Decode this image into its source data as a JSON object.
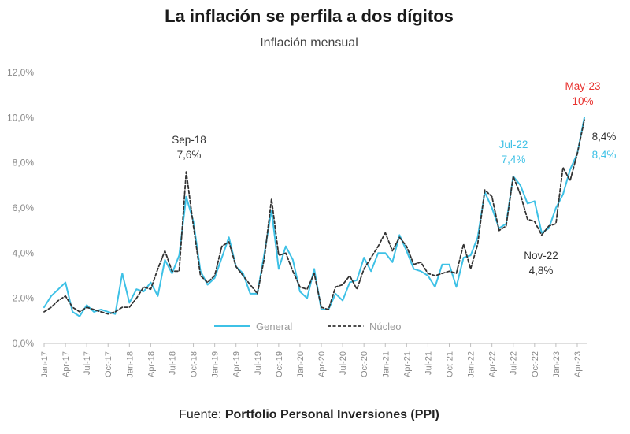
{
  "header": {
    "title": "La inflación se perfila a dos dígitos",
    "subtitle": "Inflación mensual"
  },
  "footer": {
    "source_prefix": "Fuente: ",
    "source_name": "Portfolio Personal Inversiones (PPI)"
  },
  "colors": {
    "general": "#3ec1e6",
    "nucleo": "#333333",
    "highlight": "#e8322f",
    "axis": "#bfbfbf"
  },
  "chart_data": {
    "type": "line",
    "title": "La inflación se perfila a dos dígitos",
    "subtitle": "Inflación mensual",
    "ylim": [
      0,
      12
    ],
    "yticks": [
      0,
      2,
      4,
      6,
      8,
      10,
      12
    ],
    "ytick_labels": [
      "0,0%",
      "2,0%",
      "4,0%",
      "6,0%",
      "8,0%",
      "10,0%",
      "12,0%"
    ],
    "x_tick_labels": [
      "Jan-17",
      "Apr-17",
      "Jul-17",
      "Oct-17",
      "Jan-18",
      "Apr-18",
      "Jul-18",
      "Oct-18",
      "Jan-19",
      "Apr-19",
      "Jul-19",
      "Oct-19",
      "Jan-20",
      "Apr-20",
      "Jul-20",
      "Oct-20",
      "Jan-21",
      "Apr-21",
      "Jul-21",
      "Oct-21",
      "Jan-22",
      "Apr-22",
      "Jul-22",
      "Oct-22",
      "Jan-23",
      "Apr-23"
    ],
    "x_start": "Jan-17",
    "x_end": "May-23",
    "grid": false,
    "legend_position": "bottom-center",
    "series": [
      {
        "name": "General",
        "style": "solid",
        "values": [
          1.6,
          2.1,
          2.4,
          2.7,
          1.4,
          1.2,
          1.7,
          1.4,
          1.5,
          1.4,
          1.3,
          3.1,
          1.8,
          2.4,
          2.3,
          2.7,
          2.1,
          3.7,
          3.1,
          3.9,
          6.5,
          5.4,
          3.2,
          2.6,
          2.9,
          3.8,
          4.7,
          3.4,
          3.1,
          2.2,
          2.2,
          4.0,
          5.9,
          3.3,
          4.3,
          3.7,
          2.3,
          2.0,
          3.3,
          1.5,
          1.5,
          2.2,
          1.9,
          2.7,
          2.8,
          3.8,
          3.2,
          4.0,
          4.0,
          3.6,
          4.8,
          4.1,
          3.3,
          3.2,
          3.0,
          2.5,
          3.5,
          3.5,
          2.5,
          3.8,
          3.9,
          4.7,
          6.7,
          6.0,
          5.1,
          5.3,
          7.4,
          7.0,
          6.2,
          6.3,
          4.9,
          5.1,
          6.0,
          6.6,
          7.7,
          8.4,
          10.0
        ]
      },
      {
        "name": "Núcleo",
        "style": "dashed",
        "values": [
          1.4,
          1.6,
          1.9,
          2.1,
          1.6,
          1.4,
          1.6,
          1.5,
          1.4,
          1.3,
          1.4,
          1.6,
          1.6,
          2.0,
          2.5,
          2.4,
          3.3,
          4.1,
          3.2,
          3.2,
          7.6,
          5.2,
          3.0,
          2.7,
          3.0,
          4.3,
          4.5,
          3.4,
          3.0,
          2.6,
          2.2,
          3.8,
          6.4,
          3.9,
          4.0,
          3.2,
          2.5,
          2.4,
          3.1,
          1.6,
          1.5,
          2.5,
          2.6,
          3.0,
          2.4,
          3.3,
          3.8,
          4.3,
          4.9,
          4.1,
          4.7,
          4.3,
          3.5,
          3.6,
          3.1,
          3.0,
          3.1,
          3.2,
          3.1,
          4.4,
          3.3,
          4.4,
          6.8,
          6.5,
          5.0,
          5.2,
          7.4,
          6.6,
          5.5,
          5.4,
          4.8,
          5.2,
          5.3,
          7.8,
          7.2,
          8.4,
          9.9
        ]
      }
    ],
    "annotations": [
      {
        "label": "Sep-18",
        "value": "7,6%",
        "color": "dark"
      },
      {
        "label": "Jul-22",
        "value": "7,4%",
        "color": "general"
      },
      {
        "label": "Nov-22",
        "value": "4,8%",
        "color": "dark"
      },
      {
        "label": "May-23",
        "value": "10%",
        "color": "highlight"
      },
      {
        "label": "",
        "value": "8,4%",
        "color": "dark"
      },
      {
        "label": "",
        "value": "8,4%",
        "color": "general"
      }
    ]
  }
}
